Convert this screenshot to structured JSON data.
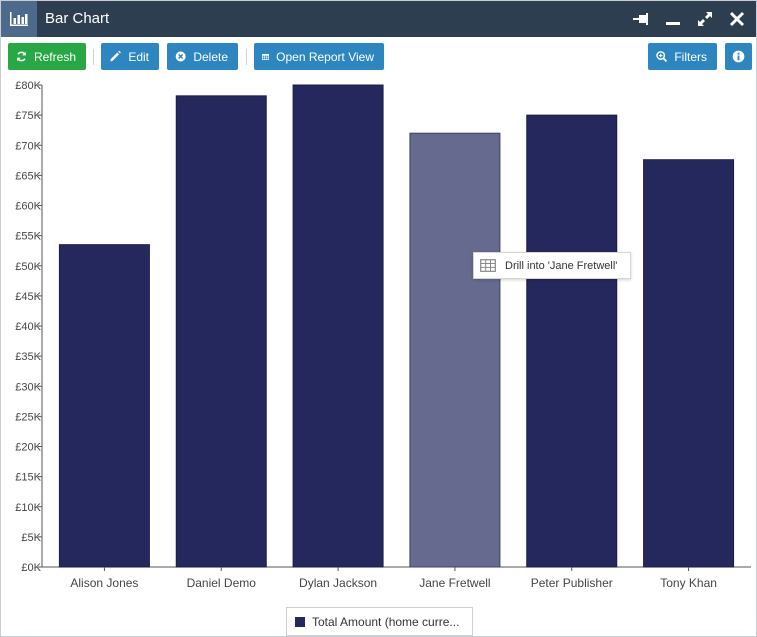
{
  "window": {
    "title": "Bar Chart"
  },
  "toolbar": {
    "refresh_label": "Refresh",
    "edit_label": "Edit",
    "delete_label": "Delete",
    "open_report_label": "Open Report View",
    "filters_label": "Filters"
  },
  "tooltip": {
    "text": "Drill into 'Jane Fretwell'"
  },
  "legend": {
    "label": "Total Amount (home curre..."
  },
  "colors": {
    "bar": "#25285c",
    "bar_hover": "#666a8e",
    "titlebar": "#2d3e50",
    "title_icon_bg": "#4d6a8c",
    "button_green": "#28a745",
    "button_blue": "#2e86c1"
  },
  "chart_data": {
    "type": "bar",
    "categories": [
      "Alison Jones",
      "Daniel Demo",
      "Dylan Jackson",
      "Jane Fretwell",
      "Peter Publisher",
      "Tony Khan"
    ],
    "series": [
      {
        "name": "Total Amount (home curre...",
        "values": [
          53500,
          78200,
          80000,
          72000,
          75000,
          67600
        ]
      }
    ],
    "highlighted_category": "Jane Fretwell",
    "ylim": [
      0,
      80000
    ],
    "y_ticks": [
      {
        "value": 0,
        "label": "£0K"
      },
      {
        "value": 5000,
        "label": "£5K"
      },
      {
        "value": 10000,
        "label": "£10K"
      },
      {
        "value": 15000,
        "label": "£15K"
      },
      {
        "value": 20000,
        "label": "£20K"
      },
      {
        "value": 25000,
        "label": "£25K"
      },
      {
        "value": 30000,
        "label": "£30K"
      },
      {
        "value": 35000,
        "label": "£35K"
      },
      {
        "value": 40000,
        "label": "£40K"
      },
      {
        "value": 45000,
        "label": "£45K"
      },
      {
        "value": 50000,
        "label": "£50K"
      },
      {
        "value": 55000,
        "label": "£55K"
      },
      {
        "value": 60000,
        "label": "£60K"
      },
      {
        "value": 65000,
        "label": "£65K"
      },
      {
        "value": 70000,
        "label": "£70K"
      },
      {
        "value": 75000,
        "label": "£75K"
      },
      {
        "value": 80000,
        "label": "£80K"
      }
    ],
    "grid": false,
    "legend_position": "bottom"
  }
}
